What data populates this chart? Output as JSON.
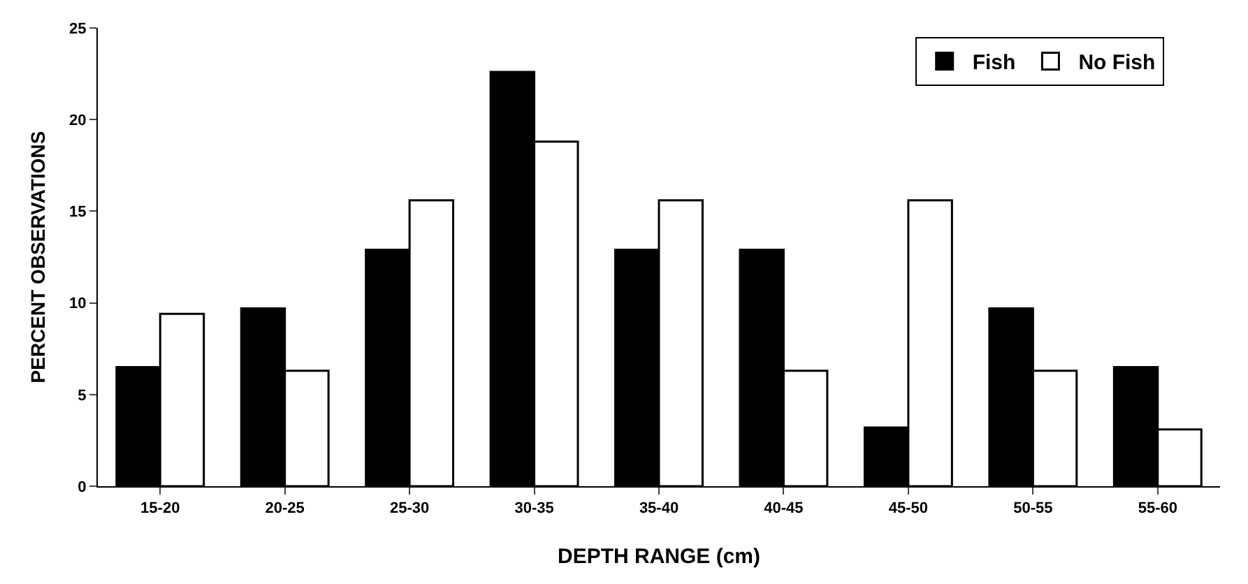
{
  "chart_data": {
    "type": "bar",
    "xlabel": "DEPTH RANGE (cm)",
    "ylabel": "PERCENT OBSERVATIONS",
    "categories": [
      "15-20",
      "20-25",
      "25-30",
      "30-35",
      "35-40",
      "40-45",
      "45-50",
      "50-55",
      "55-60"
    ],
    "series": [
      {
        "name": "Fish",
        "color": "#000000",
        "values": [
          6.5,
          9.7,
          12.9,
          22.6,
          12.9,
          12.9,
          3.2,
          9.7,
          6.5
        ]
      },
      {
        "name": "No Fish",
        "color": "#ffffff",
        "values": [
          9.4,
          6.3,
          15.6,
          18.8,
          15.6,
          6.3,
          15.6,
          6.3,
          3.1
        ]
      }
    ],
    "ylim": [
      0,
      25
    ],
    "yticks": [
      0,
      5,
      10,
      15,
      20,
      25
    ],
    "grid": false,
    "legend": "top right"
  }
}
